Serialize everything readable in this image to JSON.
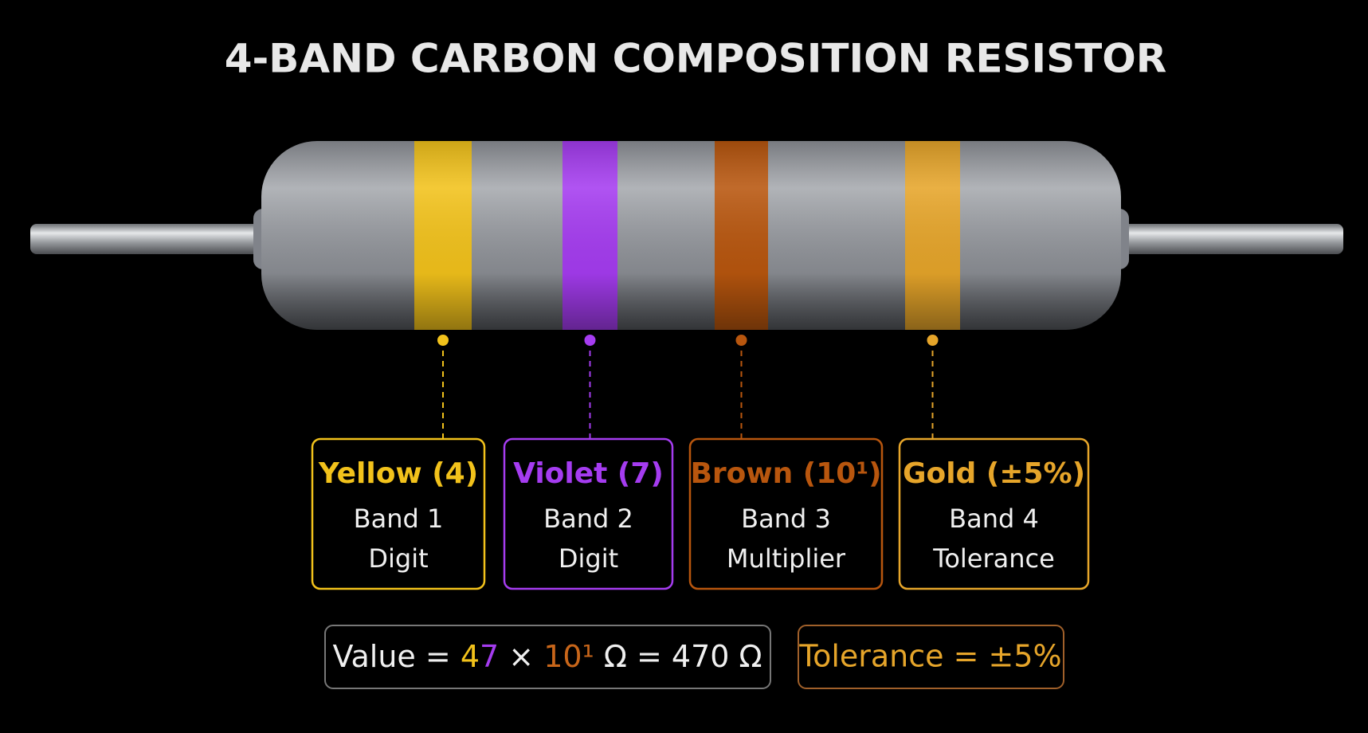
{
  "title": "4-BAND CARBON COMPOSITION RESISTOR",
  "bands": [
    {
      "label": "Yellow (4)",
      "line1": "Band 1",
      "line2": "Digit",
      "color": "#f2c21b"
    },
    {
      "label": "Violet (7)",
      "line1": "Band 2",
      "line2": "Digit",
      "color": "#a53cf0"
    },
    {
      "label": "Brown (10¹)",
      "line1": "Band 3",
      "line2": "Multiplier",
      "color": "#b8560e"
    },
    {
      "label": "Gold (±5%)",
      "line1": "Band 4",
      "line2": "Tolerance",
      "color": "#e6a52a"
    }
  ],
  "formula": {
    "parts": [
      {
        "text": "Value",
        "color": "#f0f0f0"
      },
      {
        "text": " = ",
        "color": "#f0f0f0"
      },
      {
        "text": "4",
        "color": "#f2c21b"
      },
      {
        "text": "7",
        "color": "#a53cf0"
      },
      {
        "text": " × ",
        "color": "#f0f0f0"
      },
      {
        "text": "10¹",
        "color": "#c8661a"
      },
      {
        "text": " Ω = 470 Ω",
        "color": "#f0f0f0"
      }
    ]
  },
  "tolerance": {
    "text": "Tolerance = ±5%",
    "color": "#e6a52a"
  }
}
